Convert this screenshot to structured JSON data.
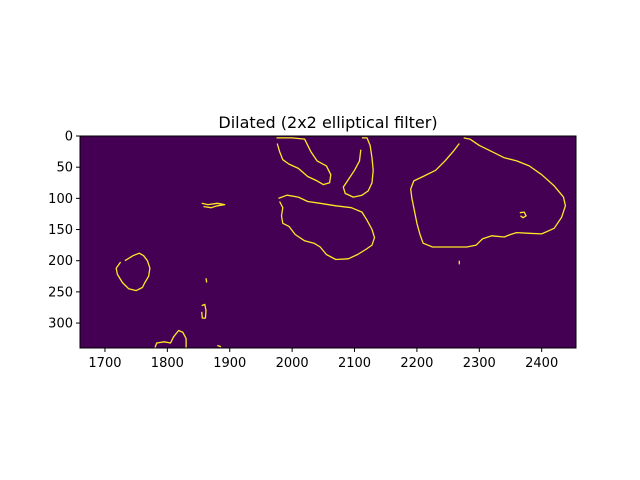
{
  "figure": {
    "title": "Dilated (2x2 elliptical filter)",
    "colors": {
      "background": "#440154",
      "contour": "#fde725",
      "frame": "#000000"
    },
    "x_ticks": [
      "1700",
      "1800",
      "1900",
      "2000",
      "2100",
      "2200",
      "2300",
      "2400"
    ],
    "y_ticks": [
      "0",
      "50",
      "100",
      "150",
      "200",
      "250",
      "300"
    ],
    "x_range": [
      1660,
      2455
    ],
    "y_range": [
      0,
      340
    ]
  },
  "chart_data": {
    "type": "heatmap",
    "title": "Dilated (2x2 elliptical filter)",
    "xlabel": "",
    "ylabel": "",
    "xlim": [
      1660,
      2455
    ],
    "ylim": [
      340,
      0
    ],
    "colormap": "viridis",
    "contours": [
      [
        [
          1732,
          200
        ],
        [
          1745,
          192
        ],
        [
          1755,
          188
        ],
        [
          1762,
          192
        ],
        [
          1768,
          200
        ],
        [
          1772,
          212
        ],
        [
          1770,
          225
        ],
        [
          1764,
          235
        ],
        [
          1760,
          243
        ],
        [
          1750,
          248
        ],
        [
          1738,
          245
        ],
        [
          1728,
          235
        ],
        [
          1720,
          222
        ],
        [
          1718,
          212
        ],
        [
          1725,
          202
        ]
      ],
      [
        [
          1855,
          108
        ],
        [
          1865,
          110
        ],
        [
          1880,
          108
        ],
        [
          1892,
          110
        ],
        [
          1880,
          112
        ],
        [
          1870,
          115
        ],
        [
          1858,
          113
        ]
      ],
      [
        [
          1862,
          228
        ],
        [
          1863,
          235
        ]
      ],
      [
        [
          1855,
          272
        ],
        [
          1860,
          270
        ],
        [
          1862,
          280
        ],
        [
          1861,
          292
        ],
        [
          1856,
          292
        ],
        [
          1855,
          282
        ]
      ],
      [
        [
          1780,
          340
        ],
        [
          1783,
          332
        ],
        [
          1795,
          330
        ],
        [
          1805,
          332
        ],
        [
          1810,
          322
        ],
        [
          1818,
          312
        ],
        [
          1825,
          315
        ],
        [
          1830,
          325
        ],
        [
          1830,
          340
        ]
      ],
      [
        [
          1880,
          336
        ],
        [
          1886,
          338
        ]
      ],
      [
        [
          1975,
          3
        ],
        [
          2000,
          3
        ],
        [
          2020,
          5
        ],
        [
          2030,
          25
        ],
        [
          2040,
          40
        ],
        [
          2055,
          48
        ],
        [
          2062,
          62
        ],
        [
          2060,
          75
        ],
        [
          2050,
          78
        ],
        [
          2040,
          72
        ],
        [
          2025,
          65
        ],
        [
          2010,
          52
        ],
        [
          1995,
          45
        ],
        [
          1985,
          38
        ],
        [
          1980,
          25
        ],
        [
          1976,
          12
        ]
      ],
      [
        [
          1978,
          100
        ],
        [
          1992,
          95
        ],
        [
          2010,
          98
        ],
        [
          2025,
          105
        ],
        [
          2045,
          108
        ],
        [
          2070,
          112
        ],
        [
          2095,
          115
        ],
        [
          2112,
          122
        ],
        [
          2120,
          135
        ],
        [
          2128,
          150
        ],
        [
          2132,
          163
        ],
        [
          2128,
          175
        ],
        [
          2118,
          182
        ],
        [
          2105,
          190
        ],
        [
          2090,
          197
        ],
        [
          2070,
          198
        ],
        [
          2055,
          190
        ],
        [
          2045,
          178
        ],
        [
          2035,
          172
        ],
        [
          2020,
          168
        ],
        [
          2005,
          158
        ],
        [
          1995,
          145
        ],
        [
          1985,
          140
        ],
        [
          1983,
          128
        ],
        [
          1985,
          115
        ],
        [
          1980,
          105
        ]
      ],
      [
        [
          2112,
          3
        ],
        [
          2120,
          3
        ],
        [
          2125,
          15
        ],
        [
          2128,
          35
        ],
        [
          2130,
          55
        ],
        [
          2128,
          75
        ],
        [
          2122,
          88
        ],
        [
          2112,
          95
        ],
        [
          2098,
          98
        ],
        [
          2085,
          92
        ],
        [
          2082,
          82
        ],
        [
          2090,
          70
        ],
        [
          2100,
          55
        ],
        [
          2108,
          40
        ],
        [
          2110,
          22
        ]
      ],
      [
        [
          2275,
          3
        ],
        [
          2285,
          5
        ],
        [
          2300,
          15
        ],
        [
          2320,
          25
        ],
        [
          2340,
          35
        ],
        [
          2360,
          40
        ],
        [
          2380,
          48
        ],
        [
          2400,
          62
        ],
        [
          2420,
          80
        ],
        [
          2435,
          98
        ],
        [
          2438,
          112
        ],
        [
          2432,
          130
        ],
        [
          2420,
          148
        ],
        [
          2400,
          157
        ],
        [
          2380,
          156
        ],
        [
          2360,
          155
        ],
        [
          2350,
          158
        ],
        [
          2340,
          162
        ],
        [
          2320,
          160
        ],
        [
          2305,
          165
        ],
        [
          2295,
          175
        ],
        [
          2280,
          178
        ],
        [
          2260,
          178
        ],
        [
          2240,
          178
        ],
        [
          2225,
          178
        ],
        [
          2210,
          172
        ],
        [
          2205,
          158
        ],
        [
          2200,
          140
        ],
        [
          2196,
          120
        ],
        [
          2192,
          100
        ],
        [
          2190,
          85
        ],
        [
          2195,
          72
        ],
        [
          2210,
          65
        ],
        [
          2230,
          55
        ],
        [
          2245,
          40
        ],
        [
          2258,
          25
        ],
        [
          2268,
          12
        ]
      ],
      [
        [
          2365,
          123
        ],
        [
          2372,
          122
        ],
        [
          2375,
          128
        ],
        [
          2370,
          131
        ],
        [
          2366,
          128
        ]
      ],
      [
        [
          2268,
          200
        ],
        [
          2268,
          206
        ]
      ]
    ]
  }
}
